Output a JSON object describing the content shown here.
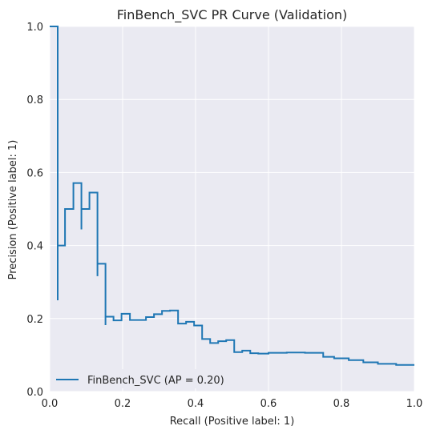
{
  "chart_data": {
    "type": "line",
    "title": "FinBench_SVC PR Curve (Validation)",
    "xlabel": "Recall (Positive label: 1)",
    "ylabel": "Precision (Positive label: 1)",
    "xlim": [
      0,
      1
    ],
    "ylim": [
      0,
      1
    ],
    "xticks": [
      "0.0",
      "0.2",
      "0.4",
      "0.6",
      "0.8",
      "1.0"
    ],
    "yticks": [
      "0.0",
      "0.2",
      "0.4",
      "0.6",
      "0.8",
      "1.0"
    ],
    "grid": true,
    "legend_position": "lower-left",
    "series": [
      {
        "name": "FinBench_SVC (AP = 0.20)",
        "color": "#1f77b4",
        "step": "post",
        "x": [
          0.0,
          0.022,
          0.022,
          0.022,
          0.042,
          0.042,
          0.065,
          0.065,
          0.087,
          0.087,
          0.087,
          0.109,
          0.109,
          0.131,
          0.131,
          0.131,
          0.153,
          0.153,
          0.153,
          0.175,
          0.175,
          0.197,
          0.197,
          0.22,
          0.22,
          0.242,
          0.242,
          0.264,
          0.264,
          0.286,
          0.286,
          0.308,
          0.308,
          0.33,
          0.33,
          0.352,
          0.352,
          0.374,
          0.374,
          0.396,
          0.396,
          0.418,
          0.418,
          0.44,
          0.44,
          0.462,
          0.462,
          0.484,
          0.484,
          0.506,
          0.506,
          0.528,
          0.528,
          0.55,
          0.55,
          0.572,
          0.572,
          0.6,
          0.6,
          0.65,
          0.65,
          0.7,
          0.7,
          0.75,
          0.75,
          0.78,
          0.78,
          0.82,
          0.82,
          0.86,
          0.86,
          0.9,
          0.9,
          0.95,
          0.95,
          1.0
        ],
        "y": [
          1.0,
          1.0,
          0.25,
          0.4,
          0.4,
          0.5,
          0.5,
          0.571,
          0.571,
          0.444,
          0.5,
          0.5,
          0.545,
          0.545,
          0.316,
          0.35,
          0.35,
          0.182,
          0.205,
          0.205,
          0.195,
          0.195,
          0.213,
          0.213,
          0.196,
          0.196,
          0.196,
          0.196,
          0.204,
          0.204,
          0.212,
          0.212,
          0.221,
          0.221,
          0.222,
          0.222,
          0.186,
          0.186,
          0.191,
          0.191,
          0.181,
          0.181,
          0.144,
          0.144,
          0.133,
          0.133,
          0.138,
          0.138,
          0.141,
          0.141,
          0.108,
          0.108,
          0.112,
          0.112,
          0.105,
          0.105,
          0.104,
          0.104,
          0.106,
          0.106,
          0.107,
          0.107,
          0.106,
          0.106,
          0.095,
          0.095,
          0.091,
          0.091,
          0.086,
          0.086,
          0.08,
          0.08,
          0.076,
          0.076,
          0.073,
          0.073
        ]
      }
    ]
  }
}
